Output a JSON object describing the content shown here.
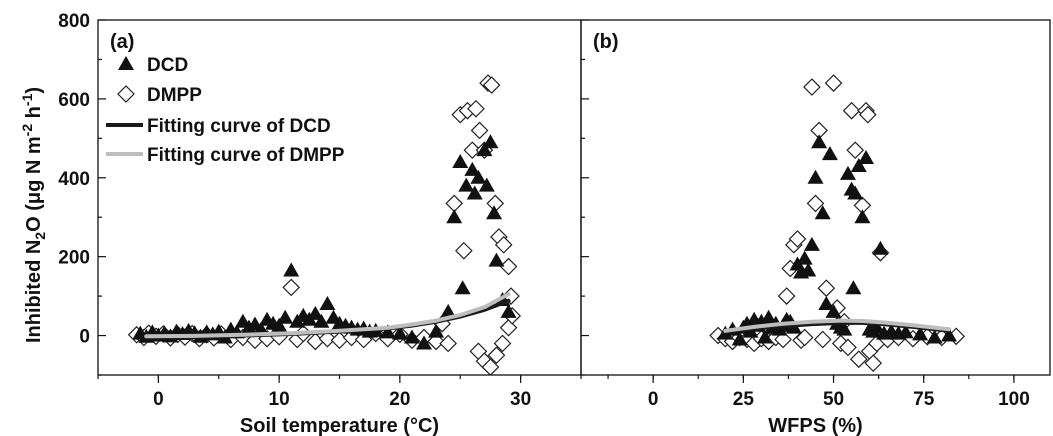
{
  "chart_data": {
    "type": "scatter",
    "ylabel": {
      "main": "Inhibited N",
      "sub2": "2",
      "mid": "O (μg N m",
      "sup1": "-2",
      "sp": " h",
      "sup2": "-1",
      "end": ")"
    },
    "ylim": [
      -100,
      800
    ],
    "yticks": [
      0,
      200,
      400,
      600,
      800
    ],
    "colors": {
      "dcd_marker": "#111111",
      "dmpp_marker": "#ffffff",
      "dcd_curve": "#1a1a1a",
      "dmpp_curve": "#bdbdbd"
    },
    "legend": {
      "placement": "top-left of panel a",
      "entries": [
        {
          "label": "DCD",
          "marker": "triangle-filled"
        },
        {
          "label": "DMPP",
          "marker": "diamond-open"
        },
        {
          "label": "Fitting curve of DCD",
          "marker": "line-dark"
        },
        {
          "label": "Fitting curve of DMPP",
          "marker": "line-gray"
        }
      ]
    },
    "panels": [
      {
        "id": "a",
        "panel_label": "(a)",
        "xlabel": "Soil temperature (°C)",
        "xlim": [
          -5,
          35
        ],
        "xticks": [
          0,
          10,
          20,
          30
        ],
        "series": [
          {
            "name": "DCD",
            "points": [
              [
                -1.5,
                5
              ],
              [
                -1,
                -3
              ],
              [
                -0.5,
                8
              ],
              [
                0,
                0
              ],
              [
                0.5,
                6
              ],
              [
                1,
                -2
              ],
              [
                1.5,
                10
              ],
              [
                2,
                4
              ],
              [
                2.5,
                12
              ],
              [
                3,
                6
              ],
              [
                3.5,
                -3
              ],
              [
                4,
                8
              ],
              [
                4.5,
                3
              ],
              [
                5,
                10
              ],
              [
                5.5,
                -5
              ],
              [
                6,
                15
              ],
              [
                6.5,
                8
              ],
              [
                7,
                35
              ],
              [
                7.5,
                20
              ],
              [
                8,
                28
              ],
              [
                8.5,
                15
              ],
              [
                9,
                40
              ],
              [
                9.5,
                30
              ],
              [
                10,
                25
              ],
              [
                10.5,
                45
              ],
              [
                11,
                165
              ],
              [
                11.5,
                35
              ],
              [
                12,
                50
              ],
              [
                12.5,
                40
              ],
              [
                13,
                55
              ],
              [
                13.5,
                35
              ],
              [
                14,
                80
              ],
              [
                14.5,
                45
              ],
              [
                15,
                30
              ],
              [
                15.5,
                25
              ],
              [
                16,
                20
              ],
              [
                16.5,
                15
              ],
              [
                17,
                18
              ],
              [
                17.5,
                10
              ],
              [
                18,
                12
              ],
              [
                19,
                8
              ],
              [
                20,
                5
              ],
              [
                21,
                -5
              ],
              [
                22,
                -20
              ],
              [
                23,
                10
              ],
              [
                24,
                60
              ],
              [
                24.5,
                300
              ],
              [
                25,
                440
              ],
              [
                25.2,
                120
              ],
              [
                25.5,
                380
              ],
              [
                26,
                420
              ],
              [
                26.2,
                360
              ],
              [
                26.5,
                400
              ],
              [
                27,
                470
              ],
              [
                27.2,
                380
              ],
              [
                27.5,
                490
              ],
              [
                27.8,
                310
              ],
              [
                28,
                190
              ],
              [
                28.5,
                90
              ],
              [
                29,
                60
              ]
            ]
          },
          {
            "name": "DMPP",
            "points": [
              [
                -1.8,
                2
              ],
              [
                -1.2,
                -5
              ],
              [
                -0.8,
                6
              ],
              [
                -0.2,
                -2
              ],
              [
                0.4,
                4
              ],
              [
                1,
                -6
              ],
              [
                1.6,
                3
              ],
              [
                2.2,
                -4
              ],
              [
                2.8,
                5
              ],
              [
                3.4,
                -8
              ],
              [
                4,
                2
              ],
              [
                4.6,
                -6
              ],
              [
                5.2,
                4
              ],
              [
                6,
                -10
              ],
              [
                7,
                -5
              ],
              [
                8,
                -12
              ],
              [
                9,
                -8
              ],
              [
                10,
                -3
              ],
              [
                11,
                122
              ],
              [
                11.5,
                -10
              ],
              [
                12,
                5
              ],
              [
                13,
                -15
              ],
              [
                14,
                -8
              ],
              [
                15,
                -12
              ],
              [
                16,
                -5
              ],
              [
                17,
                -10
              ],
              [
                18,
                5
              ],
              [
                19,
                -8
              ],
              [
                20,
                3
              ],
              [
                21,
                -12
              ],
              [
                22,
                -5
              ],
              [
                23,
                -15
              ],
              [
                23.5,
                30
              ],
              [
                24,
                -20
              ],
              [
                24.5,
                335
              ],
              [
                25,
                560
              ],
              [
                25.3,
                215
              ],
              [
                25.6,
                570
              ],
              [
                26,
                470
              ],
              [
                26.3,
                575
              ],
              [
                26.6,
                520
              ],
              [
                27,
                470
              ],
              [
                27.3,
                640
              ],
              [
                27.6,
                635
              ],
              [
                27.9,
                335
              ],
              [
                28.2,
                250
              ],
              [
                28.6,
                230
              ],
              [
                29,
                175
              ],
              [
                29.2,
                100
              ],
              [
                26.5,
                -40
              ],
              [
                27,
                -65
              ],
              [
                27.5,
                -80
              ],
              [
                28,
                -50
              ],
              [
                28.5,
                -20
              ],
              [
                29,
                20
              ],
              [
                29.3,
                50
              ]
            ]
          }
        ],
        "curves": [
          {
            "name": "Fitting curve of DCD",
            "x": [
              -1,
              3,
              7,
              11,
              15,
              19,
              21,
              23,
              25,
              27,
              29
            ],
            "y": [
              -5,
              -3,
              0,
              4,
              10,
              18,
              25,
              35,
              48,
              65,
              88
            ]
          },
          {
            "name": "Fitting curve of DMPP",
            "x": [
              -1,
              3,
              7,
              11,
              15,
              19,
              21,
              23,
              25,
              27,
              29
            ],
            "y": [
              -2,
              -1,
              2,
              6,
              12,
              20,
              28,
              38,
              52,
              72,
              105
            ]
          }
        ]
      },
      {
        "id": "b",
        "panel_label": "(b)",
        "xlabel": "WFPS (%)",
        "xlim": [
          -20,
          110
        ],
        "xticks": [
          0,
          25,
          50,
          75,
          100
        ],
        "series": [
          {
            "name": "DCD",
            "points": [
              [
                20,
                5
              ],
              [
                22,
                15
              ],
              [
                24,
                -10
              ],
              [
                25,
                20
              ],
              [
                26,
                30
              ],
              [
                27,
                10
              ],
              [
                28,
                40
              ],
              [
                29,
                25
              ],
              [
                30,
                35
              ],
              [
                31,
                -5
              ],
              [
                32,
                45
              ],
              [
                33,
                20
              ],
              [
                34,
                30
              ],
              [
                35,
                15
              ],
              [
                36,
                25
              ],
              [
                37,
                40
              ],
              [
                38,
                35
              ],
              [
                39,
                20
              ],
              [
                40,
                180
              ],
              [
                41,
                160
              ],
              [
                42,
                195
              ],
              [
                43,
                165
              ],
              [
                44,
                230
              ],
              [
                45,
                400
              ],
              [
                46,
                490
              ],
              [
                47,
                310
              ],
              [
                48,
                80
              ],
              [
                49,
                460
              ],
              [
                50,
                60
              ],
              [
                51,
                30
              ],
              [
                52,
                20
              ],
              [
                53,
                15
              ],
              [
                54,
                410
              ],
              [
                55,
                370
              ],
              [
                55.5,
                120
              ],
              [
                56,
                360
              ],
              [
                57,
                430
              ],
              [
                58,
                300
              ],
              [
                59,
                450
              ],
              [
                60,
                15
              ],
              [
                61,
                10
              ],
              [
                62,
                20
              ],
              [
                63,
                220
              ],
              [
                64,
                5
              ],
              [
                66,
                10
              ],
              [
                68,
                5
              ],
              [
                70,
                8
              ],
              [
                74,
                3
              ],
              [
                78,
                -5
              ],
              [
                82,
                0
              ]
            ]
          },
          {
            "name": "DMPP",
            "points": [
              [
                18,
                0
              ],
              [
                20,
                -8
              ],
              [
                22,
                -15
              ],
              [
                24,
                -5
              ],
              [
                26,
                -10
              ],
              [
                28,
                -20
              ],
              [
                30,
                -8
              ],
              [
                32,
                -15
              ],
              [
                34,
                -5
              ],
              [
                36,
                -10
              ],
              [
                37,
                100
              ],
              [
                38,
                170
              ],
              [
                39,
                230
              ],
              [
                40,
                245
              ],
              [
                41,
                -12
              ],
              [
                42,
                -5
              ],
              [
                44,
                630
              ],
              [
                45,
                335
              ],
              [
                46,
                520
              ],
              [
                47,
                -10
              ],
              [
                48,
                120
              ],
              [
                50,
                640
              ],
              [
                51,
                70
              ],
              [
                52,
                -20
              ],
              [
                53,
                35
              ],
              [
                54,
                -30
              ],
              [
                55,
                570
              ],
              [
                56,
                470
              ],
              [
                57,
                -60
              ],
              [
                58,
                330
              ],
              [
                59,
                570
              ],
              [
                59.5,
                560
              ],
              [
                60,
                -40
              ],
              [
                61,
                -70
              ],
              [
                62,
                -20
              ],
              [
                63,
                210
              ],
              [
                65,
                -10
              ],
              [
                68,
                -5
              ],
              [
                72,
                -8
              ],
              [
                76,
                -3
              ],
              [
                80,
                -5
              ],
              [
                84,
                -2
              ]
            ]
          }
        ],
        "curves": [
          {
            "name": "Fitting curve of DCD",
            "x": [
              20,
              28,
              36,
              44,
              52,
              58,
              64,
              72,
              82
            ],
            "y": [
              10,
              18,
              24,
              29,
              32,
              32,
              29,
              22,
              12
            ]
          },
          {
            "name": "Fitting curve of DMPP",
            "x": [
              20,
              28,
              36,
              44,
              52,
              58,
              64,
              72,
              82
            ],
            "y": [
              12,
              22,
              30,
              35,
              38,
              37,
              33,
              26,
              16
            ]
          }
        ]
      }
    ]
  }
}
